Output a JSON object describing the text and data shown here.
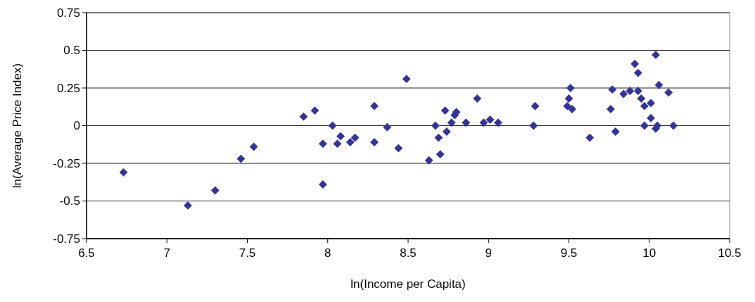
{
  "chart_data": {
    "type": "scatter",
    "xlabel": "ln(Income per Capita)",
    "ylabel": "ln(Average Price Index)",
    "x": [
      6.73,
      7.13,
      7.3,
      7.46,
      7.54,
      7.85,
      7.92,
      8.03,
      7.97,
      7.97,
      8.08,
      8.06,
      8.14,
      8.17,
      8.29,
      8.29,
      8.37,
      8.44,
      8.49,
      8.63,
      8.67,
      8.69,
      8.7,
      8.74,
      8.73,
      8.8,
      8.79,
      8.77,
      8.86,
      8.93,
      8.97,
      9.01,
      9.06,
      9.29,
      9.28,
      9.51,
      9.5,
      9.49,
      9.52,
      9.63,
      9.77,
      9.76,
      9.79,
      9.84,
      9.88,
      9.91,
      9.93,
      9.93,
      9.95,
      9.97,
      10.01,
      10.01,
      9.97,
      10.04,
      10.05,
      10.04,
      10.06,
      10.12,
      10.15
    ],
    "series": [
      {
        "color": "#333399",
        "values": [
          -0.31,
          -0.53,
          -0.43,
          -0.22,
          -0.14,
          0.06,
          0.1,
          0.0,
          -0.12,
          -0.39,
          -0.07,
          -0.12,
          -0.11,
          -0.08,
          0.13,
          -0.11,
          -0.01,
          -0.15,
          0.31,
          -0.23,
          0.0,
          -0.08,
          -0.19,
          -0.04,
          0.1,
          0.09,
          0.07,
          0.02,
          0.02,
          0.18,
          0.02,
          0.04,
          0.02,
          0.13,
          0.0,
          0.25,
          0.18,
          0.13,
          0.11,
          -0.08,
          0.24,
          0.11,
          -0.04,
          0.21,
          0.23,
          0.41,
          0.35,
          0.23,
          0.18,
          0.13,
          0.15,
          0.05,
          0.0,
          -0.02,
          0.0,
          0.47,
          0.27,
          0.22,
          0.0
        ]
      }
    ],
    "xlim": [
      6.5,
      10.5
    ],
    "xticks": [
      6.5,
      7,
      7.5,
      8,
      8.5,
      9,
      9.5,
      10,
      10.5
    ],
    "ylim": [
      -0.75,
      0.75
    ],
    "yticks": [
      -0.75,
      -0.5,
      -0.25,
      0,
      0.25,
      0.5,
      0.75
    ],
    "grid": "y",
    "marker": "diamond"
  }
}
